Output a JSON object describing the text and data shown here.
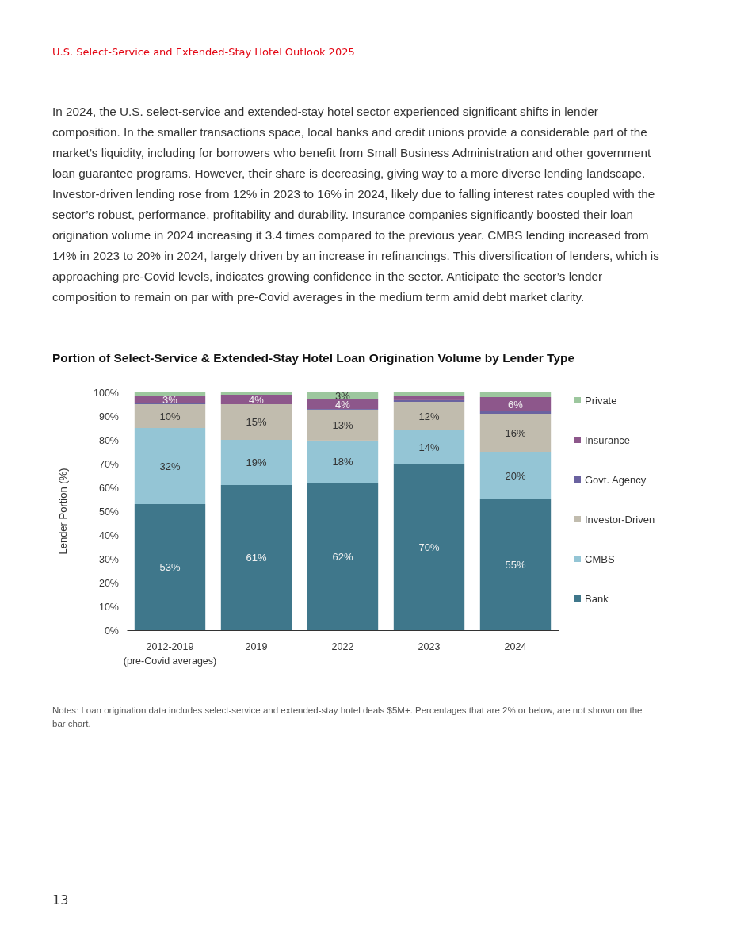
{
  "chart_data": {
    "type": "bar",
    "stacked": true,
    "title": "Portion of Select-Service & Extended-Stay Hotel Loan Origination Volume by Lender Type",
    "ylabel": "Lender Portion (%)",
    "categories": [
      "2012-2019\n(pre-Covid averages)",
      "2019",
      "2022",
      "2023",
      "2024"
    ],
    "series": [
      {
        "name": "Bank",
        "color": "#3f778b",
        "values": [
          53,
          61,
          61.7,
          70,
          55
        ],
        "value_labels": [
          "53%",
          "61%",
          "62%",
          "70%",
          "55%"
        ]
      },
      {
        "name": "CMBS",
        "color": "#94c5d5",
        "values": [
          32,
          19,
          18,
          14,
          20
        ],
        "value_labels": [
          "32%",
          "19%",
          "18%",
          "14%",
          "20%"
        ]
      },
      {
        "name": "Investor-Driven",
        "color": "#c1bcae",
        "values": [
          10,
          15,
          13,
          12,
          16
        ],
        "value_labels": [
          "10%",
          "15%",
          "13%",
          "12%",
          "16%"
        ]
      },
      {
        "name": "Govt. Agency",
        "color": "#6a62a0",
        "values": [
          0.5,
          0,
          0.3,
          0.7,
          1
        ],
        "value_labels": [
          null,
          null,
          null,
          null,
          null
        ]
      },
      {
        "name": "Insurance",
        "color": "#8d578b",
        "values": [
          3,
          4,
          4,
          1.8,
          6
        ],
        "value_labels": [
          "3%",
          "4%",
          "4%",
          null,
          "6%"
        ]
      },
      {
        "name": "Private",
        "color": "#9dc79e",
        "values": [
          1.5,
          1,
          3,
          1.5,
          2
        ],
        "value_labels": [
          null,
          null,
          "3%",
          null,
          null
        ]
      }
    ],
    "ylim": [
      0,
      100
    ],
    "yticks": [
      {
        "value": 0,
        "label": "0%"
      },
      {
        "value": 10,
        "label": "10%"
      },
      {
        "value": 20,
        "label": "20%"
      },
      {
        "value": 30,
        "label": "30%"
      },
      {
        "value": 40,
        "label": "40%"
      },
      {
        "value": 50,
        "label": "50%"
      },
      {
        "value": 60,
        "label": "60%"
      },
      {
        "value": 70,
        "label": "70%"
      },
      {
        "value": 80,
        "label": "80%"
      },
      {
        "value": 90,
        "label": "90%"
      },
      {
        "value": 100,
        "label": "100%"
      }
    ],
    "grid": false,
    "legend": "right",
    "annotations": [
      "U.S. Select-Service and Extended-Stay Hotel Outlook 2025",
      "In 2024, the U.S. select-service and extended-stay hotel sector experienced significant shifts in lender composition. In the smaller transactions space, local banks and credit unions provide a considerable part of the market’s liquidity, including for borrowers who benefit from Small Business Administration and other government loan guarantee programs. However, their share is decreasing, giving way to a more diverse lending landscape. Investor-driven lending rose from 12% in 2023 to 16% in 2024, likely due to falling interest rates coupled with the sector’s robust, performance, profitability and durability. Insurance companies significantly boosted their loan origination volume in 2024 increasing it 3.4 times compared to the previous year. CMBS lending increased from 14% in 2023 to 20% in 2024, largely driven by an increase in refinancings. This diversification of lenders, which is approaching pre-Covid levels, indicates growing confidence in the sector. Anticipate the sector’s lender composition to remain on par with pre-Covid averages in the medium term amid debt market clarity.",
      "Notes: Loan origination data includes select-service and extended-stay hotel deals $5M+. Percentages that are 2% or below, are not shown on the bar chart.",
      "13"
    ]
  }
}
